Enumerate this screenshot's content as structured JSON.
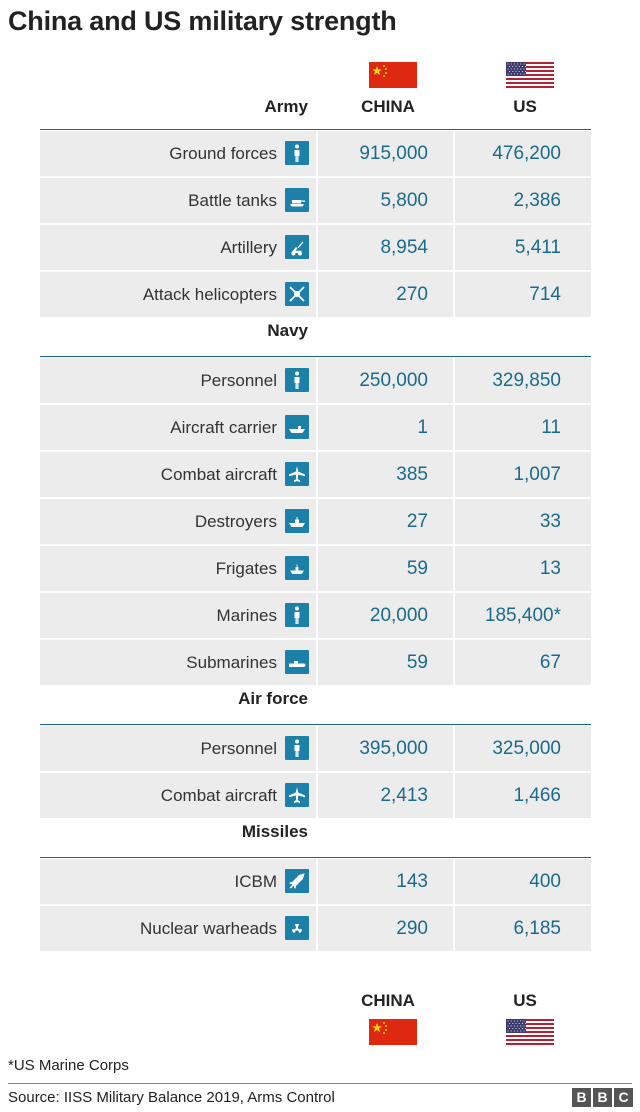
{
  "title": "China and US military strength",
  "columns": {
    "china": "CHINA",
    "us": "US"
  },
  "colors": {
    "accent": "#1a6a8d",
    "icon": "#1d80a9",
    "cell": "#ececec",
    "china_flag": "#de2910",
    "china_star": "#ffde00",
    "us_red": "#b22234",
    "us_blue": "#3c3b6e"
  },
  "chart_data": {
    "type": "table",
    "title": "China and US military strength",
    "columns": [
      "CHINA",
      "US"
    ],
    "sections": [
      {
        "name": "Army",
        "rows": [
          {
            "label": "Ground forces",
            "icon": "person-icon",
            "china": "915,000",
            "us": "476,200"
          },
          {
            "label": "Battle tanks",
            "icon": "tank-icon",
            "china": "5,800",
            "us": "2,386"
          },
          {
            "label": "Artillery",
            "icon": "artillery-icon",
            "china": "8,954",
            "us": "5,411"
          },
          {
            "label": "Attack helicopters",
            "icon": "helicopter-icon",
            "china": "270",
            "us": "714"
          }
        ]
      },
      {
        "name": "Navy",
        "rows": [
          {
            "label": "Personnel",
            "icon": "person-icon",
            "china": "250,000",
            "us": "329,850"
          },
          {
            "label": "Aircraft carrier",
            "icon": "carrier-icon",
            "china": "1",
            "us": "11"
          },
          {
            "label": "Combat aircraft",
            "icon": "plane-icon",
            "china": "385",
            "us": "1,007"
          },
          {
            "label": "Destroyers",
            "icon": "destroyer-icon",
            "china": "27",
            "us": "33"
          },
          {
            "label": "Frigates",
            "icon": "frigate-icon",
            "china": "59",
            "us": "13"
          },
          {
            "label": "Marines",
            "icon": "person-icon",
            "china": "20,000",
            "us": "185,400*"
          },
          {
            "label": "Submarines",
            "icon": "submarine-icon",
            "china": "59",
            "us": "67"
          }
        ]
      },
      {
        "name": "Air force",
        "rows": [
          {
            "label": "Personnel",
            "icon": "person-icon",
            "china": "395,000",
            "us": "325,000"
          },
          {
            "label": "Combat aircraft",
            "icon": "plane-icon",
            "china": "2,413",
            "us": "1,466"
          }
        ]
      },
      {
        "name": "Missiles",
        "rows": [
          {
            "label": "ICBM",
            "icon": "missile-icon",
            "china": "143",
            "us": "400"
          },
          {
            "label": "Nuclear warheads",
            "icon": "radiation-icon",
            "china": "290",
            "us": "6,185"
          }
        ]
      }
    ]
  },
  "footnote": "*US Marine Corps",
  "source": "Source: IISS Military Balance 2019, Arms Control",
  "logo": [
    "B",
    "B",
    "C"
  ]
}
